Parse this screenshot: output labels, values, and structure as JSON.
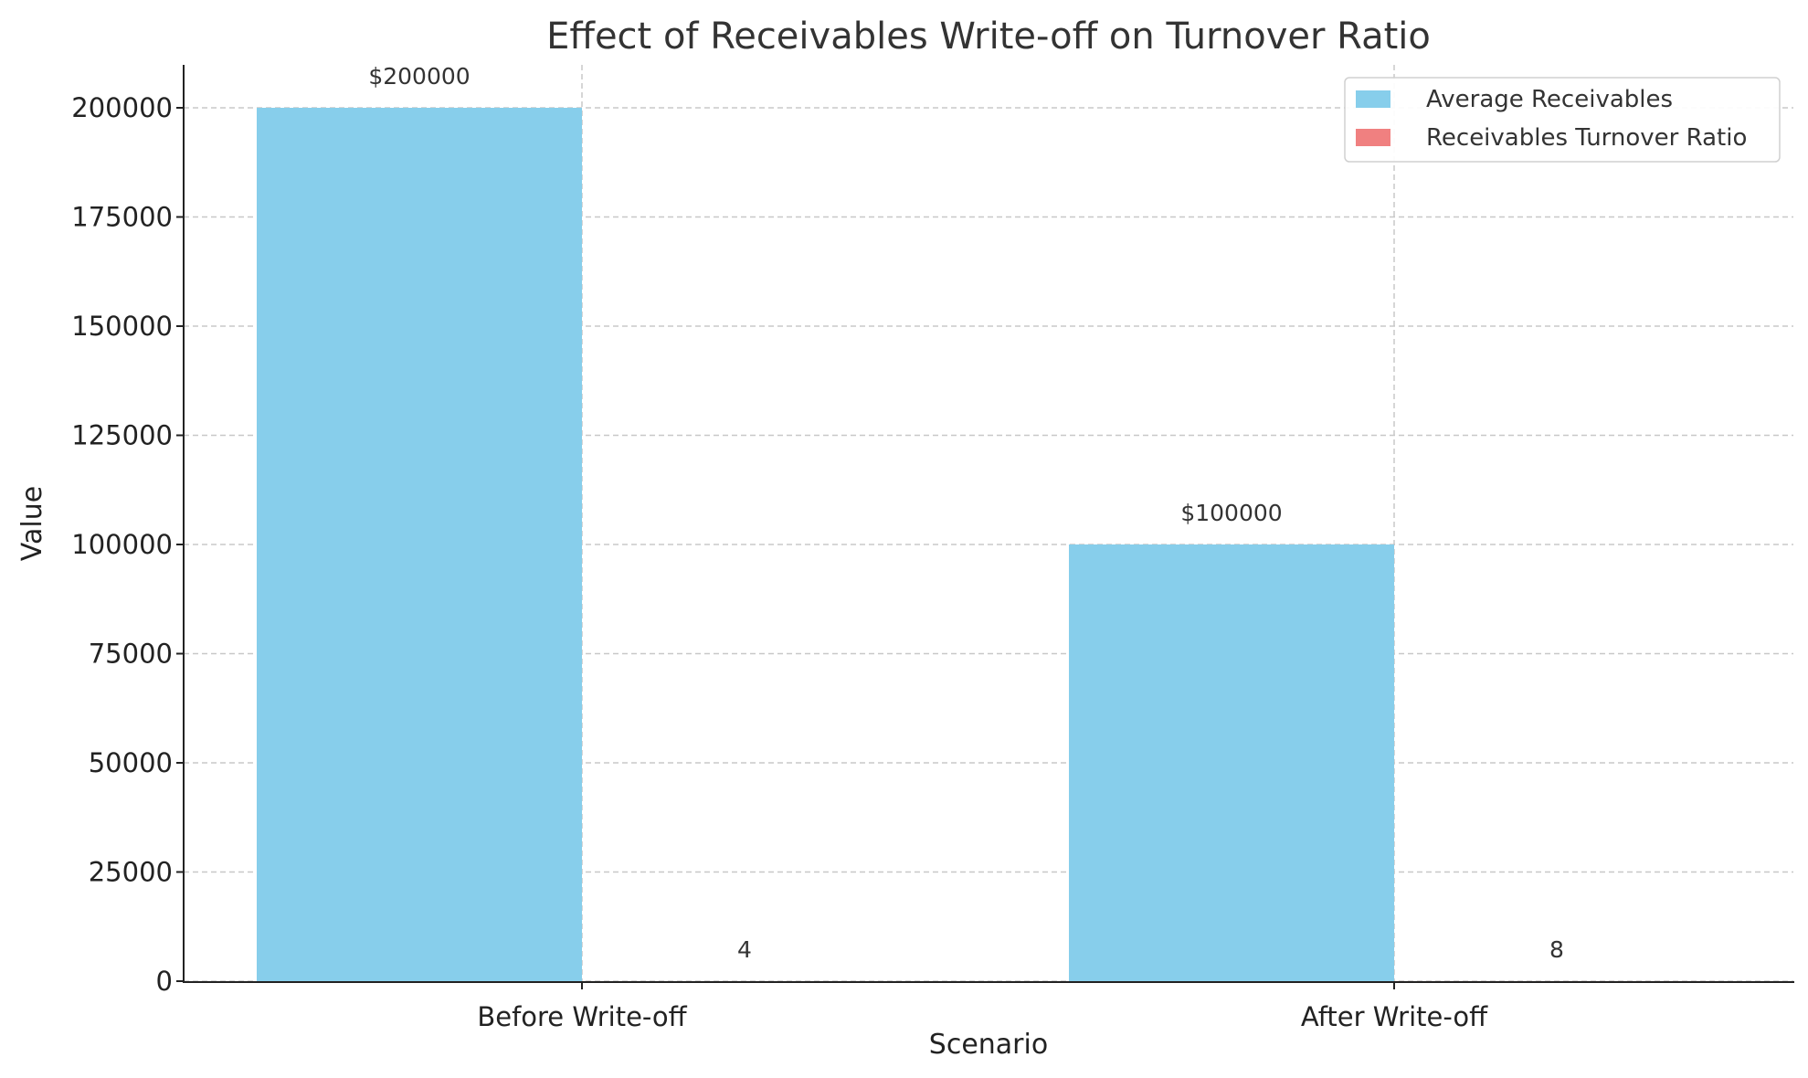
{
  "chart_data": {
    "type": "bar",
    "title": "Effect of Receivables Write-off on Turnover Ratio",
    "xlabel": "Scenario",
    "ylabel": "Value",
    "categories": [
      "Before Write-off",
      "After Write-off"
    ],
    "series": [
      {
        "name": "Average Receivables",
        "color": "#87ceeb",
        "values": [
          200000,
          100000
        ],
        "value_labels": [
          "$200000",
          "$100000"
        ]
      },
      {
        "name": "Receivables Turnover Ratio",
        "color": "#f08080",
        "values": [
          4,
          8
        ],
        "value_labels": [
          "4",
          "8"
        ]
      }
    ],
    "ylim": [
      0,
      210000
    ],
    "yticks": [
      0,
      25000,
      50000,
      75000,
      100000,
      125000,
      150000,
      175000,
      200000
    ],
    "ytick_labels": [
      "0",
      "25000",
      "50000",
      "75000",
      "100000",
      "125000",
      "150000",
      "175000",
      "200000"
    ],
    "grid": true,
    "legend_position": "top-right"
  }
}
